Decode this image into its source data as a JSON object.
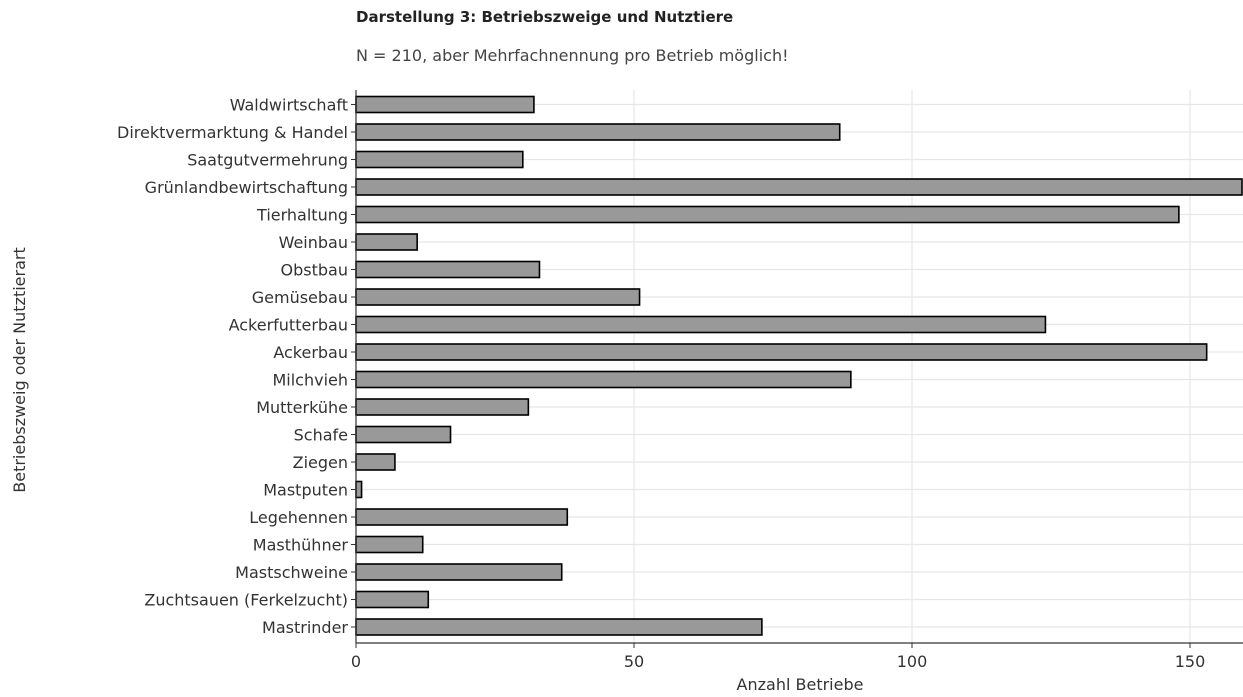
{
  "chart_data": {
    "type": "bar",
    "orientation": "horizontal",
    "title": "Darstellung 3: Betriebszweige und Nutztiere",
    "subtitle": "N = 210, aber Mehrfachnennung pro Betrieb möglich!",
    "xlabel": "Anzahl Betriebe",
    "ylabel": "Betriebszweig oder Nutztierart",
    "xlim": [
      0,
      160
    ],
    "xticks": [
      0,
      50,
      100,
      150
    ],
    "grid": true,
    "bar_color": "#999999",
    "bar_edge_color": "#000000",
    "categories": [
      "Waldwirtschaft",
      "Direktvermarktung & Handel",
      "Saatgutvermehrung",
      "Grünlandbewirtschaftung",
      "Tierhaltung",
      "Weinbau",
      "Obstbau",
      "Gemüsebau",
      "Ackerfutterbau",
      "Ackerbau",
      "Milchvieh",
      "Mutterkühe",
      "Schafe",
      "Ziegen",
      "Mastputen",
      "Legehennen",
      "Masthühner",
      "Mastschweine",
      "Zuchtsauen (Ferkelzucht)",
      "Mastrinder"
    ],
    "values": [
      32,
      87,
      30,
      165,
      148,
      11,
      33,
      51,
      124,
      153,
      89,
      31,
      17,
      7,
      1,
      38,
      12,
      37,
      13,
      73
    ]
  }
}
